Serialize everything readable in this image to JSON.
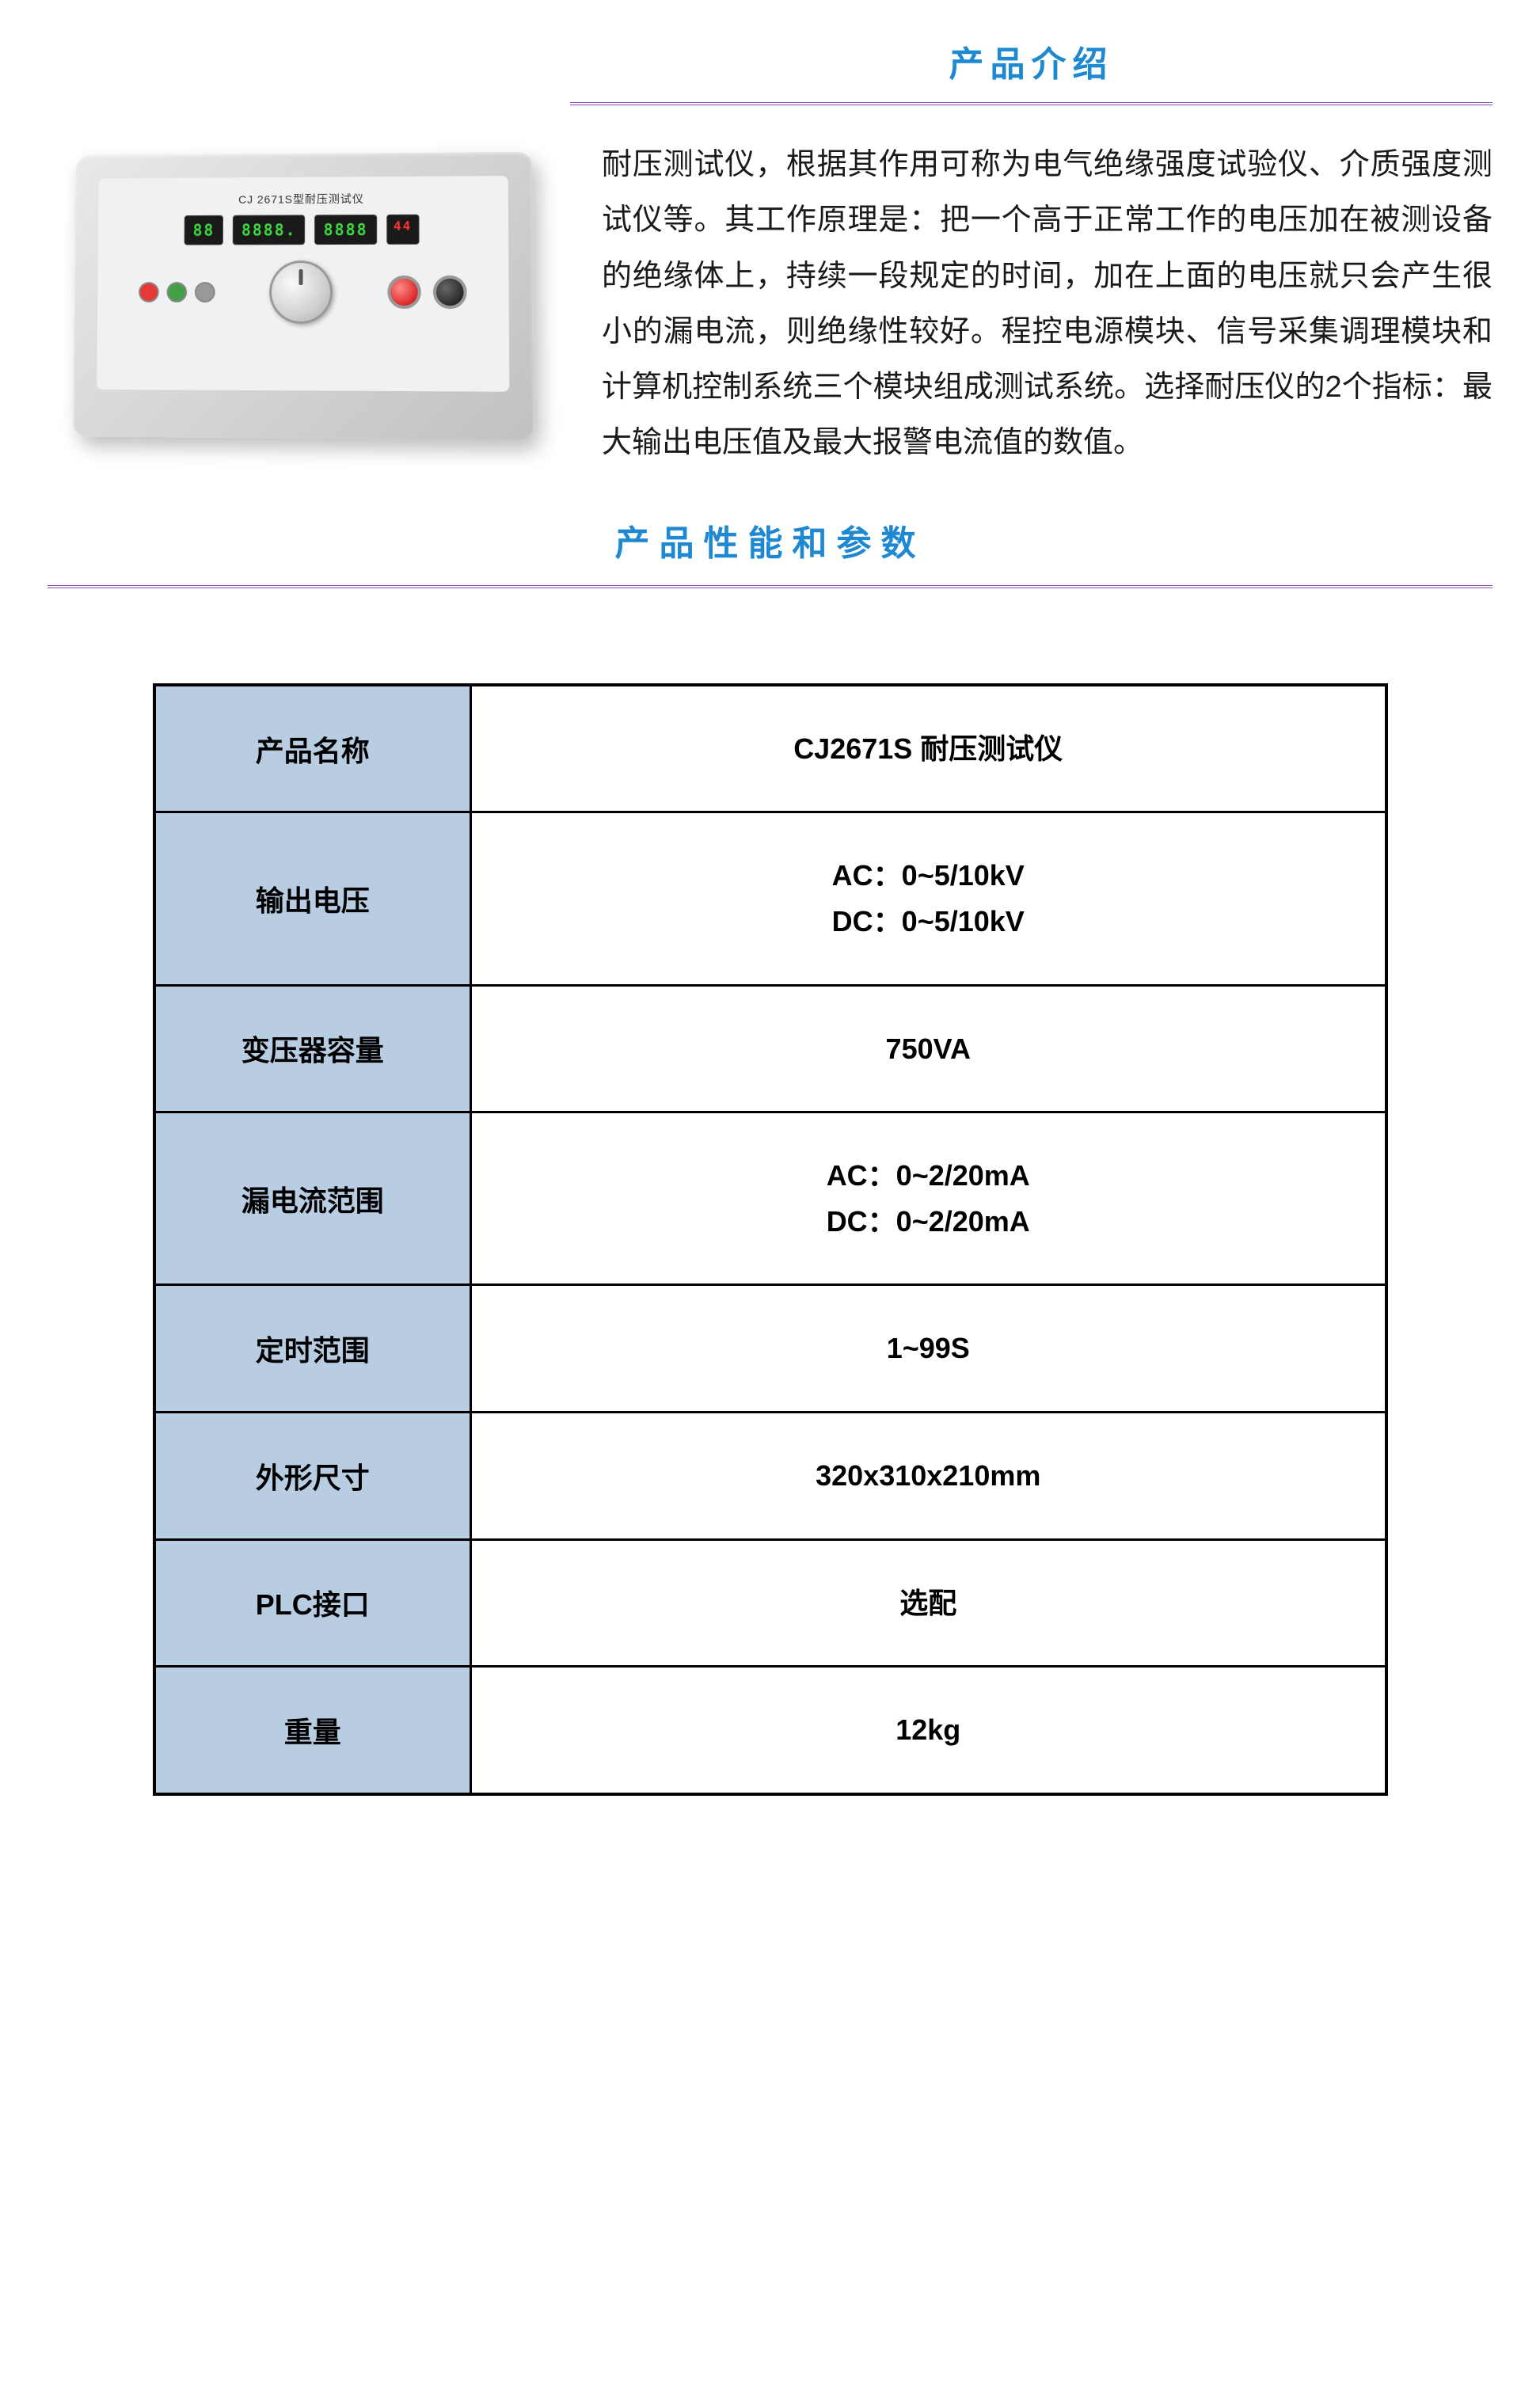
{
  "intro": {
    "title": "产品介绍",
    "device_label": "CJ 2671S型耐压测试仪",
    "display1": "88",
    "display2": "8888.",
    "display3": "8888",
    "display4": "44",
    "text": "耐压测试仪，根据其作用可称为电气绝缘强度试验仪、介质强度测试仪等。其工作原理是：把一个高于正常工作的电压加在被测设备的绝缘体上，持续一段规定的时间，加在上面的电压就只会产生很小的漏电流，则绝缘性较好。程控电源模块、信号采集调理模块和计算机控制系统三个模块组成测试系统。选择耐压仪的2个指标：最大输出电压值及最大报警电流值的数值。"
  },
  "params": {
    "title": "产品性能和参数",
    "rows": [
      {
        "label": "产品名称",
        "value": "CJ2671S 耐压测试仪"
      },
      {
        "label": "输出电压",
        "value": "AC：0~5/10kV\nDC：0~5/10kV"
      },
      {
        "label": "变压器容量",
        "value": "750VA"
      },
      {
        "label": "漏电流范围",
        "value": "AC：0~2/20mA\nDC：0~2/20mA"
      },
      {
        "label": "定时范围",
        "value": "1~99S"
      },
      {
        "label": "外形尺寸",
        "value": "320x310x210mm"
      },
      {
        "label": "PLC接口",
        "value": "选配"
      },
      {
        "label": "重量",
        "value": "12kg"
      }
    ]
  },
  "colors": {
    "title_color": "#1e88d0",
    "divider_color": "#8a4fa8",
    "table_header_bg": "#b8cde2",
    "table_border": "#000000"
  }
}
